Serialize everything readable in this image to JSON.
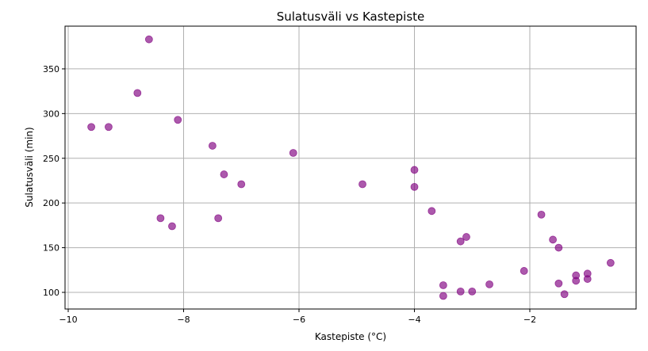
{
  "chart_data": {
    "type": "scatter",
    "title": "Sulatusväli vs Kastepiste",
    "xlabel": "Kastepiste (°C)",
    "ylabel": "Sulatusväli (min)",
    "xlim": [
      -10.055,
      -0.158
    ],
    "ylim": [
      81.4,
      397.8
    ],
    "xticks": [
      -10,
      -8,
      -6,
      -4,
      -2
    ],
    "xtick_labels": [
      "−10",
      "−8",
      "−6",
      "−4",
      "−2"
    ],
    "yticks": [
      100,
      150,
      200,
      250,
      300,
      350
    ],
    "ytick_labels": [
      "100",
      "150",
      "200",
      "250",
      "300",
      "350"
    ],
    "grid": true,
    "color": "#800080",
    "points": [
      {
        "x": -8.6,
        "y": 383
      },
      {
        "x": -8.8,
        "y": 323
      },
      {
        "x": -9.6,
        "y": 285
      },
      {
        "x": -9.3,
        "y": 285
      },
      {
        "x": -8.1,
        "y": 293
      },
      {
        "x": -7.5,
        "y": 264
      },
      {
        "x": -6.1,
        "y": 256
      },
      {
        "x": -7.3,
        "y": 232
      },
      {
        "x": -7.0,
        "y": 221
      },
      {
        "x": -4.9,
        "y": 221
      },
      {
        "x": -4.0,
        "y": 237
      },
      {
        "x": -4.0,
        "y": 218
      },
      {
        "x": -3.7,
        "y": 191
      },
      {
        "x": -8.4,
        "y": 183
      },
      {
        "x": -7.4,
        "y": 183
      },
      {
        "x": -8.2,
        "y": 174
      },
      {
        "x": -1.8,
        "y": 187
      },
      {
        "x": -1.6,
        "y": 159
      },
      {
        "x": -1.5,
        "y": 150
      },
      {
        "x": -3.1,
        "y": 162
      },
      {
        "x": -3.2,
        "y": 157
      },
      {
        "x": -0.6,
        "y": 133
      },
      {
        "x": -2.1,
        "y": 124
      },
      {
        "x": -1.0,
        "y": 121
      },
      {
        "x": -1.2,
        "y": 119
      },
      {
        "x": -1.2,
        "y": 113
      },
      {
        "x": -1.0,
        "y": 115
      },
      {
        "x": -1.5,
        "y": 110
      },
      {
        "x": -3.5,
        "y": 108
      },
      {
        "x": -2.7,
        "y": 109
      },
      {
        "x": -3.2,
        "y": 101
      },
      {
        "x": -3.0,
        "y": 101
      },
      {
        "x": -3.5,
        "y": 96
      },
      {
        "x": -1.4,
        "y": 98
      }
    ]
  }
}
